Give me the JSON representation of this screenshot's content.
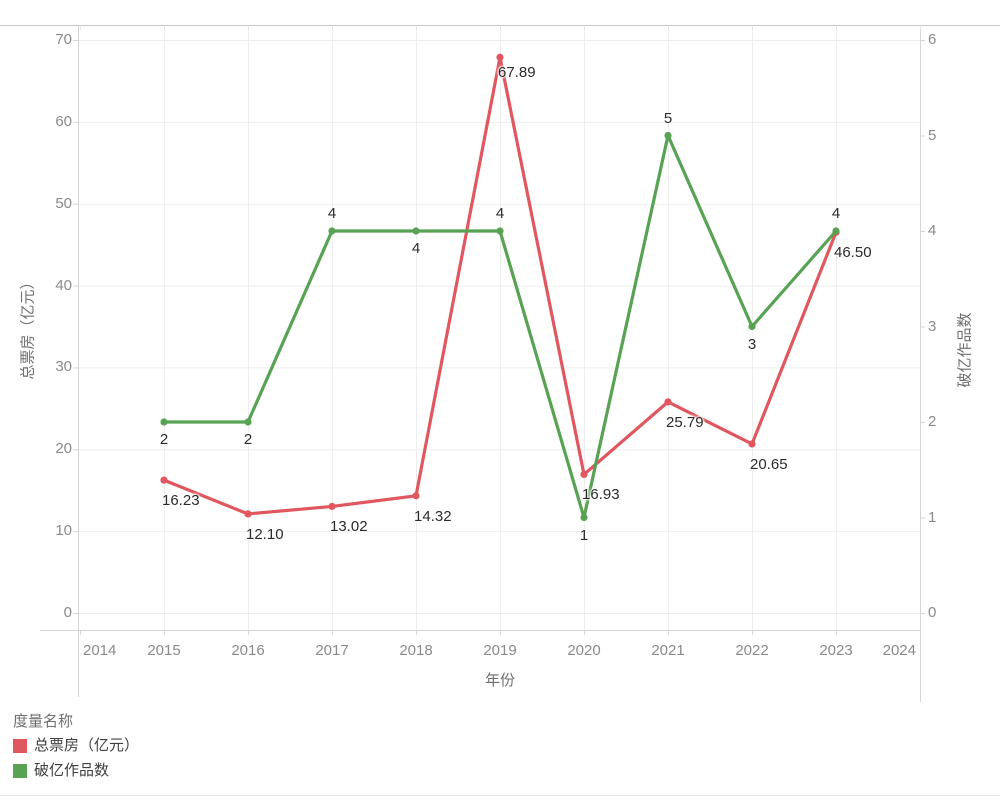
{
  "chart_data": {
    "type": "line",
    "title": "",
    "x": [
      2015,
      2016,
      2017,
      2018,
      2019,
      2020,
      2021,
      2022,
      2023
    ],
    "series": [
      {
        "name": "总票房（亿元）",
        "axis": "left",
        "color": "#e15760",
        "values": [
          16.23,
          12.1,
          13.02,
          14.32,
          67.89,
          16.93,
          25.79,
          20.65,
          46.5
        ],
        "labels": [
          "16.23",
          "12.10",
          "13.02",
          "14.32",
          "67.89",
          "16.93",
          "25.79",
          "20.65",
          "46.50"
        ],
        "label_positions": [
          "below",
          "below",
          "below",
          "below",
          "below",
          "below",
          "below",
          "below",
          "below"
        ]
      },
      {
        "name": "破亿作品数",
        "axis": "right",
        "color": "#58a254",
        "values": [
          2,
          2,
          4,
          4,
          4,
          1,
          5,
          3,
          4
        ],
        "labels": [
          "2",
          "2",
          "4",
          "4",
          "4",
          "1",
          "5",
          "3",
          "4"
        ],
        "label_positions": [
          "below",
          "below",
          "above",
          "below",
          "above",
          "below",
          "above",
          "below",
          "above"
        ]
      }
    ],
    "x_axis": {
      "title": "年份",
      "ticks": [
        2014,
        2015,
        2016,
        2017,
        2018,
        2019,
        2020,
        2021,
        2022,
        2023,
        2024
      ],
      "range": [
        2014,
        2024
      ]
    },
    "y_axis_left": {
      "title": "总票房（亿元）",
      "ticks": [
        0,
        10,
        20,
        30,
        40,
        50,
        60,
        70
      ],
      "range": [
        0,
        70
      ]
    },
    "y_axis_right": {
      "title": "破亿作品数",
      "ticks": [
        0,
        1,
        2,
        3,
        4,
        5,
        6
      ],
      "range": [
        0,
        6
      ]
    },
    "grid": true,
    "legend": {
      "title": "度量名称",
      "position": "bottom-left",
      "items": [
        {
          "label": "总票房（亿元）",
          "color": "#e15760"
        },
        {
          "label": "破亿作品数",
          "color": "#58a254"
        }
      ]
    }
  }
}
